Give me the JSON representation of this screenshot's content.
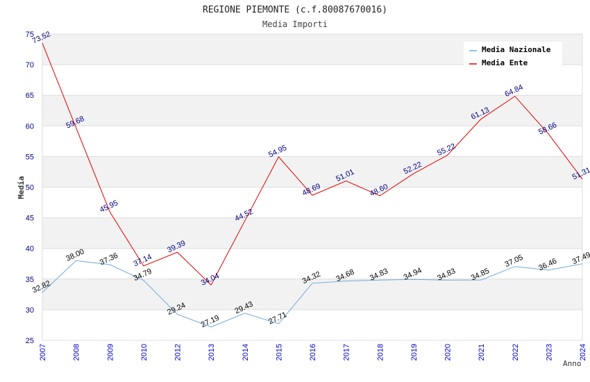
{
  "chart_data": {
    "type": "line",
    "title": "REGIONE PIEMONTE (c.f.80087670016)",
    "subtitle": "Media Importi",
    "ylabel": "Media",
    "xlabel": "Anno",
    "ylim": [
      25,
      75
    ],
    "yticks": [
      25,
      30,
      35,
      40,
      45,
      50,
      55,
      60,
      65,
      70,
      75
    ],
    "categories": [
      "2007",
      "2008",
      "2009",
      "2010",
      "2012",
      "2013",
      "2014",
      "2015",
      "2016",
      "2017",
      "2018",
      "2019",
      "2020",
      "2021",
      "2022",
      "2023",
      "2024"
    ],
    "grid": "horizontal, alternating bands",
    "legend_position": "top-right",
    "series": [
      {
        "name": "Media Nazionale",
        "color": "#6fa8dc",
        "values": [
          32.82,
          38.0,
          37.36,
          34.79,
          29.24,
          27.19,
          29.43,
          27.71,
          34.32,
          34.68,
          34.83,
          34.94,
          34.83,
          34.85,
          37.05,
          36.46,
          37.49
        ],
        "labels": [
          "32.82",
          "38.00",
          "37.36",
          "34.79",
          "29.24",
          "27.19",
          "29.43",
          "27.71",
          "34.32",
          "34.68",
          "34.83",
          "34.94",
          "34.83",
          "34.85",
          "37.05",
          "36.46",
          "37.49"
        ]
      },
      {
        "name": "Media Ente",
        "color": "#e00000",
        "values": [
          73.52,
          59.68,
          45.95,
          37.14,
          39.39,
          34.04,
          44.52,
          54.95,
          48.69,
          51.01,
          48.6,
          52.22,
          55.22,
          61.13,
          64.84,
          58.66,
          51.31
        ],
        "labels": [
          "73.52",
          "59.68",
          "45.95",
          "37.14",
          "39.39",
          "34.04",
          "44.52",
          "54.95",
          "48.69",
          "51.01",
          "48.60",
          "52.22",
          "55.22",
          "61.13",
          "64.84",
          "58.66",
          "51.31"
        ]
      }
    ]
  }
}
